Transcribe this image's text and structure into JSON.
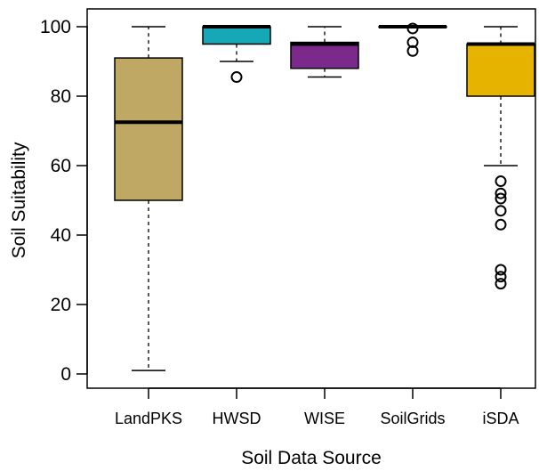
{
  "chart_data": {
    "type": "boxplot",
    "title": "",
    "xlabel": "Soil Data Source",
    "ylabel": "Soil Suitability",
    "ylim": [
      0,
      100
    ],
    "yticks": [
      0,
      20,
      40,
      60,
      80,
      100
    ],
    "grid": false,
    "legend": "none",
    "categories": [
      "LandPKS",
      "HWSD",
      "WISE",
      "SoilGrids",
      "iSDA"
    ],
    "series": [
      {
        "category": "LandPKS",
        "color": "#bfa864",
        "min": 1,
        "q1": 50,
        "median": 72.5,
        "q3": 91,
        "max": 100,
        "outliers": []
      },
      {
        "category": "HWSD",
        "color": "#17a8b8",
        "min": 90,
        "q1": 95,
        "median": 100,
        "q3": 100,
        "max": 100,
        "outliers": [
          85.5
        ]
      },
      {
        "category": "WISE",
        "color": "#7b2a8c",
        "min": 85.5,
        "q1": 88,
        "median": 95,
        "q3": 95.5,
        "max": 100,
        "outliers": []
      },
      {
        "category": "SoilGrids",
        "color": "#ffffff",
        "min": 100,
        "q1": 100,
        "median": 100,
        "q3": 100,
        "max": 100,
        "outliers": [
          99.5,
          95.5,
          93
        ]
      },
      {
        "category": "iSDA",
        "color": "#e6b400",
        "min": 60,
        "q1": 80,
        "median": 95,
        "q3": 95,
        "max": 100,
        "outliers": [
          55.5,
          52,
          50.5,
          47,
          43,
          30,
          28,
          26
        ]
      }
    ]
  }
}
